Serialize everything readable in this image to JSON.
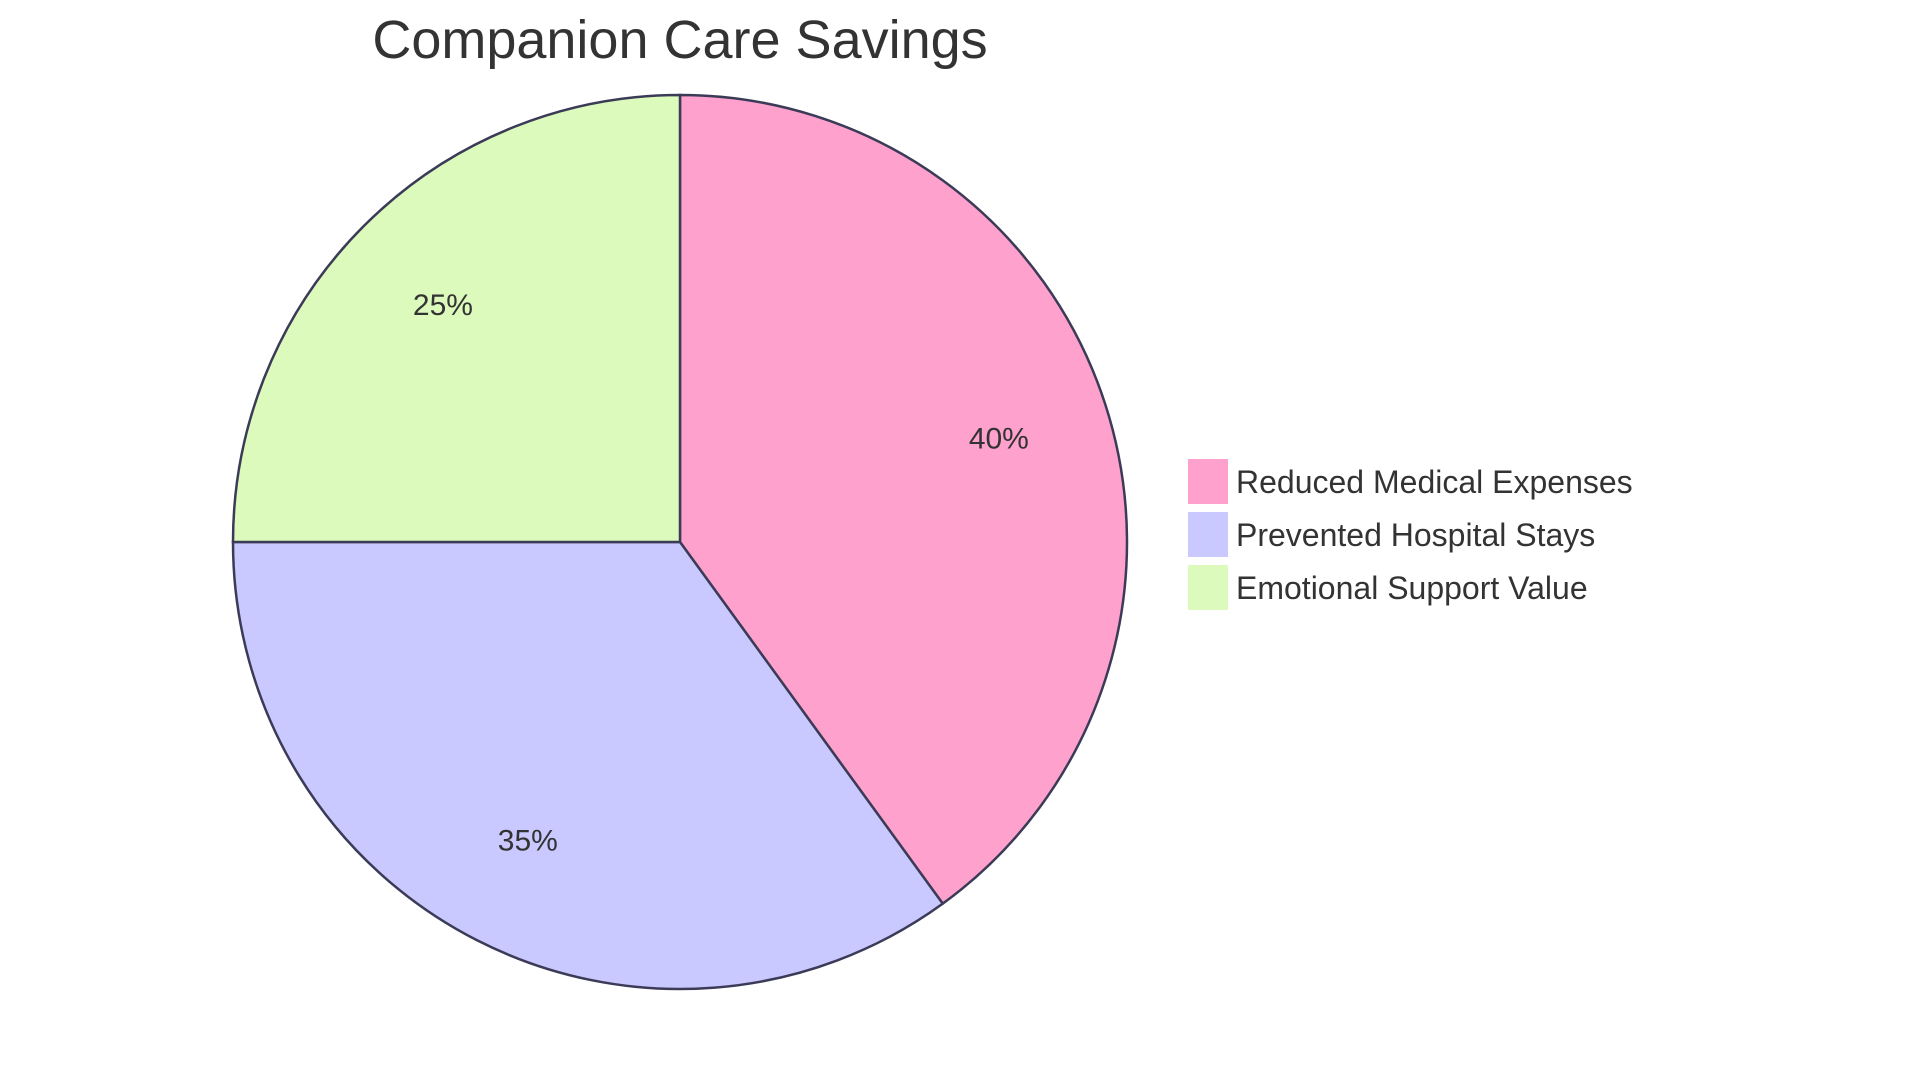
{
  "chart_data": {
    "type": "pie",
    "title": "Companion Care Savings",
    "slices": [
      {
        "label": "Reduced Medical Expenses",
        "value": 40,
        "display": "40%",
        "color": "#FFA1CD"
      },
      {
        "label": "Prevented Hospital Stays",
        "value": 35,
        "display": "35%",
        "color": "#C9C9FF"
      },
      {
        "label": "Emotional Support Value",
        "value": 25,
        "display": "25%",
        "color": "#DCFABB"
      }
    ],
    "legend_position": "right",
    "stroke_color": "#3B3B58"
  }
}
